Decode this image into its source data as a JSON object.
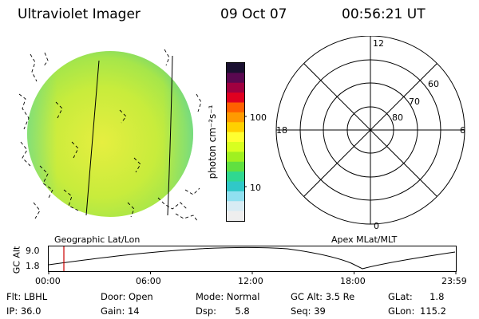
{
  "header": {
    "title": "Ultraviolet Imager",
    "date": "09 Oct 07",
    "time": "00:56:21 UT"
  },
  "colorbar": {
    "unit_label": "photon cm⁻²s⁻¹",
    "ticks": [
      "100",
      "10"
    ],
    "colors": [
      "#1a1030",
      "#5a0850",
      "#a00040",
      "#e00020",
      "#ff6000",
      "#ff9a00",
      "#ffd000",
      "#ffff30",
      "#d8ff20",
      "#a0f020",
      "#60e040",
      "#30d890",
      "#30c8c8",
      "#90e0f0",
      "#d8ecf4",
      "#eeeeee"
    ]
  },
  "polar": {
    "mlt_labels": {
      "top": "12",
      "left": "18",
      "right": "6",
      "bottom": "0"
    },
    "lat_labels": [
      "60",
      "70",
      "80"
    ]
  },
  "timeline": {
    "left_label": "Geographic Lat/Lon",
    "right_label": "Apex MLat/MLT",
    "y_axis_title": "GC Alt",
    "y_ticks": [
      "9.0",
      "1.8"
    ],
    "x_ticks": [
      "00:00",
      "06:00",
      "12:00",
      "18:00",
      "23:59"
    ],
    "marker_color": "#cc0000"
  },
  "info": {
    "flt_label": "Flt:",
    "flt_value": "LBHL",
    "door_label": "Door:",
    "door_value": "Open",
    "mode_label": "Mode:",
    "mode_value": "Normal",
    "gcalt_label": "GC Alt:",
    "gcalt_value": "3.5 Re",
    "glat_label": "GLat:",
    "glat_value": "1.8",
    "ip_label": "IP:",
    "ip_value": "36.0",
    "gain_label": "Gain:",
    "gain_value": "14",
    "dsp_label": "Dsp:",
    "dsp_value": "5.8",
    "seq_label": "Seq:",
    "seq_value": "39",
    "glon_label": "GLon:",
    "glon_value": "115.2"
  }
}
